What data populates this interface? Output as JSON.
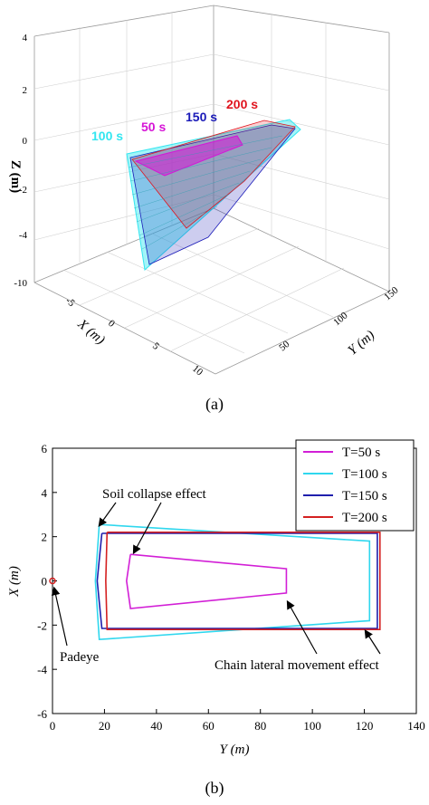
{
  "chart_data": [
    {
      "type": "3d-surface",
      "caption": "(a)",
      "axes": {
        "z_label": "Z (m)",
        "x_label": "X (m)",
        "y_label": "Y (m)",
        "z_ticks": [
          "4",
          "2",
          "0",
          "-2",
          "-4",
          "-10"
        ],
        "x_ticks": [
          "-5",
          "0",
          "5",
          "10"
        ],
        "y_ticks": [
          "50",
          "100",
          "150"
        ]
      },
      "time_labels": [
        {
          "text": "100 s",
          "color": "#33e6f0"
        },
        {
          "text": "50 s",
          "color": "#d614d6"
        },
        {
          "text": "150 s",
          "color": "#1a1ab8"
        },
        {
          "text": "200 s",
          "color": "#e0141e"
        }
      ]
    },
    {
      "type": "line",
      "caption": "(b)",
      "xlabel": "Y (m)",
      "ylabel": "X (m)",
      "xlim": [
        0,
        140
      ],
      "ylim": [
        -6,
        6
      ],
      "xticks": [
        "0",
        "20",
        "40",
        "60",
        "80",
        "100",
        "120",
        "140"
      ],
      "yticks": [
        "-6",
        "-4",
        "-2",
        "0",
        "2",
        "4",
        "6"
      ],
      "legend_position": "top-right",
      "series": [
        {
          "name": "T=50 s",
          "color": "#d21fd6",
          "points": [
            [
              30,
              1.2
            ],
            [
              90,
              0.55
            ],
            [
              90,
              -0.55
            ],
            [
              30,
              -1.25
            ],
            [
              28.5,
              0
            ],
            [
              30,
              1.2
            ]
          ]
        },
        {
          "name": "T=100 s",
          "color": "#2fd7ee",
          "points": [
            [
              18,
              2.55
            ],
            [
              122,
              1.8
            ],
            [
              122,
              -1.8
            ],
            [
              18,
              -2.65
            ],
            [
              16.5,
              0
            ],
            [
              18,
              2.55
            ]
          ]
        },
        {
          "name": "T=150 s",
          "color": "#1f1fad",
          "points": [
            [
              19,
              2.15
            ],
            [
              125,
              2.15
            ],
            [
              125,
              -2.15
            ],
            [
              19,
              -2.15
            ],
            [
              17.2,
              0
            ],
            [
              19,
              2.15
            ]
          ]
        },
        {
          "name": "T=200 s",
          "color": "#d42020",
          "points": [
            [
              21,
              2.2
            ],
            [
              126,
              2.2
            ],
            [
              126,
              -2.2
            ],
            [
              21,
              -2.2
            ],
            [
              20.5,
              0
            ],
            [
              21,
              2.2
            ]
          ]
        }
      ],
      "padeye": {
        "label": "Padeye",
        "x": 0,
        "y": 0,
        "color": "#d42020"
      },
      "annotations": [
        {
          "text": "Soil collapse effect"
        },
        {
          "text": "Chain lateral movement effect"
        }
      ]
    }
  ]
}
